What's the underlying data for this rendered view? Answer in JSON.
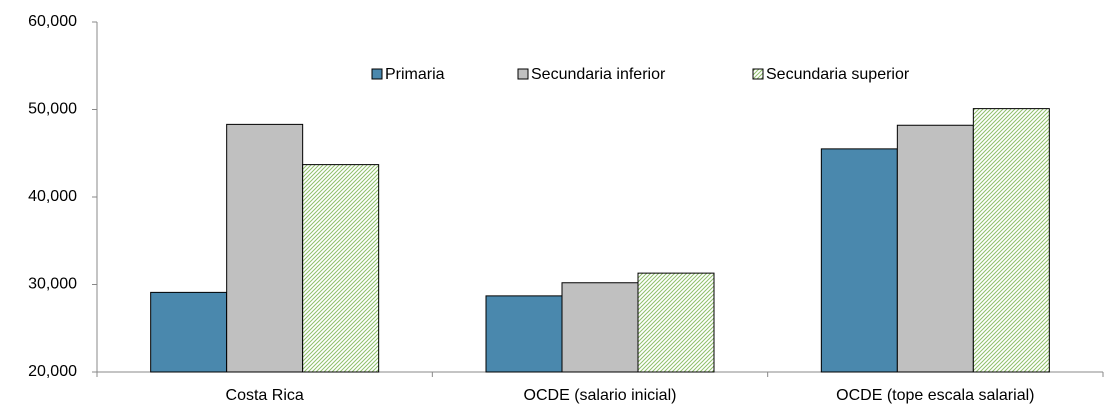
{
  "chart_data": {
    "type": "bar",
    "categories": [
      "Costa Rica",
      "OCDE (salario inicial)",
      "OCDE (tope escala salarial)"
    ],
    "series": [
      {
        "name": "Primaria",
        "color": "#4a88ad",
        "values": [
          29100,
          28700,
          45500
        ]
      },
      {
        "name": "Secundaria inferior",
        "color": "#c0c0c0",
        "values": [
          48300,
          30200,
          48200
        ]
      },
      {
        "name": "Secundaria superior",
        "color": "#d8ebc4",
        "values": [
          43700,
          31300,
          50100
        ]
      }
    ],
    "ylim": [
      20000,
      60000
    ],
    "yticks": [
      {
        "value": 20000,
        "label": "20,000"
      },
      {
        "value": 30000,
        "label": "30,000"
      },
      {
        "value": 40000,
        "label": "40,000"
      },
      {
        "value": 50000,
        "label": "50,000"
      },
      {
        "value": 60000,
        "label": "60,000"
      }
    ],
    "grid": false
  }
}
